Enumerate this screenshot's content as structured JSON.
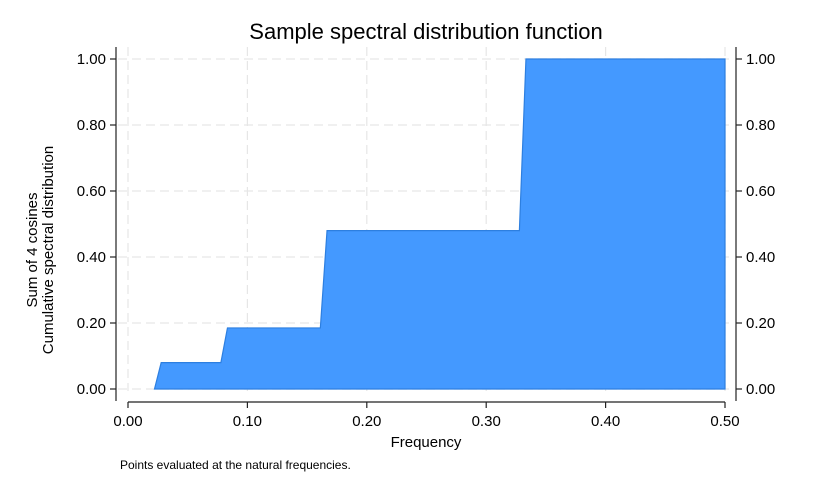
{
  "chart_data": {
    "type": "area",
    "title": "Sample spectral distribution function",
    "xlabel": "Frequency",
    "ylabel_lines": [
      "Sum of 4 cosines",
      "Cumulative spectral distribution"
    ],
    "note": "Points evaluated at the natural frequencies.",
    "xlim": [
      0,
      0.5
    ],
    "ylim": [
      0,
      1
    ],
    "x_ticks": [
      0,
      0.1,
      0.2,
      0.3,
      0.4,
      0.5
    ],
    "x_tick_labels": [
      "0.00",
      "0.10",
      "0.20",
      "0.30",
      "0.40",
      "0.50"
    ],
    "y_ticks": [
      0,
      0.2,
      0.4,
      0.6,
      0.8,
      1.0
    ],
    "y_tick_labels": [
      "0.00",
      "0.20",
      "0.40",
      "0.60",
      "0.80",
      "1.00"
    ],
    "grid": true,
    "fill_color": "#4499ff",
    "line_color": "#2d7fe0",
    "x": [
      0.0222,
      0.0278,
      0.0778,
      0.0833,
      0.1611,
      0.1667,
      0.3278,
      0.3333,
      0.5
    ],
    "y": [
      0.0,
      0.08,
      0.08,
      0.185,
      0.185,
      0.48,
      0.48,
      1.0,
      1.0
    ]
  }
}
